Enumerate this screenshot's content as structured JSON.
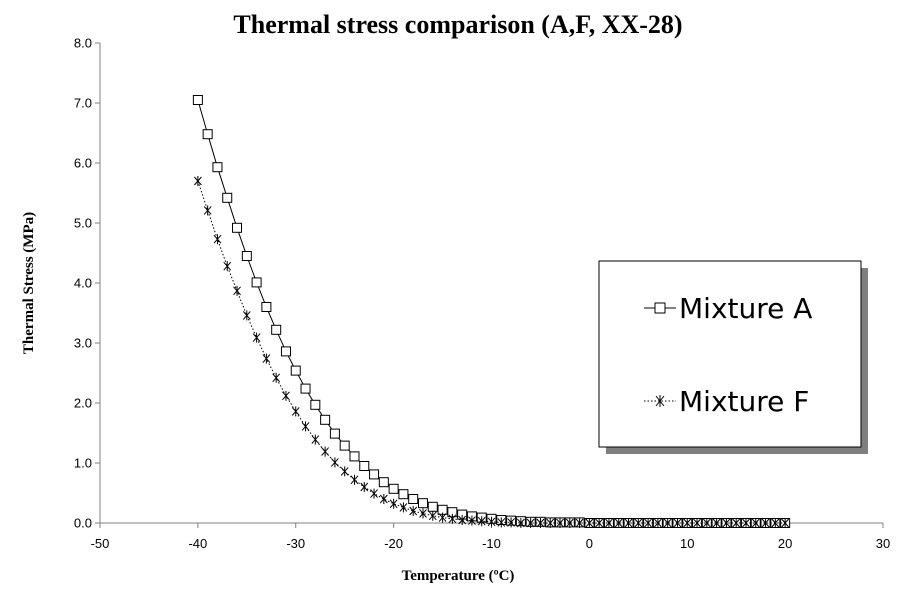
{
  "chart_data": {
    "type": "line",
    "title": "Thermal stress comparison (A,F, XX-28)",
    "xlabel": "Temperature (ºC)",
    "ylabel": "Thermal Stress (MPa)",
    "xlim": [
      -50,
      30
    ],
    "ylim": [
      0,
      8
    ],
    "x_ticks": [
      -50,
      -40,
      -30,
      -20,
      -10,
      0,
      10,
      20,
      30
    ],
    "y_ticks": [
      0.0,
      1.0,
      2.0,
      3.0,
      4.0,
      5.0,
      6.0,
      7.0,
      8.0
    ],
    "grid": false,
    "legend_position": "right",
    "series": [
      {
        "name": "Mixture A",
        "marker": "square",
        "line_style": "solid",
        "color": "#000000",
        "x": [
          -40,
          -39,
          -38,
          -37,
          -36,
          -35,
          -34,
          -33,
          -32,
          -31,
          -30,
          -29,
          -28,
          -27,
          -26,
          -25,
          -24,
          -23,
          -22,
          -21,
          -20,
          -19,
          -18,
          -17,
          -16,
          -15,
          -14,
          -13,
          -12,
          -11,
          -10,
          -9,
          -8,
          -7,
          -6,
          -5,
          -4,
          -3,
          -2,
          -1,
          0,
          1,
          2,
          3,
          4,
          5,
          6,
          7,
          8,
          9,
          10,
          11,
          12,
          13,
          14,
          15,
          16,
          17,
          18,
          19,
          20
        ],
        "y": [
          7.05,
          6.48,
          5.93,
          5.42,
          4.92,
          4.45,
          4.01,
          3.6,
          3.22,
          2.86,
          2.54,
          2.24,
          1.97,
          1.72,
          1.49,
          1.29,
          1.11,
          0.95,
          0.81,
          0.68,
          0.57,
          0.48,
          0.4,
          0.33,
          0.27,
          0.22,
          0.18,
          0.14,
          0.11,
          0.09,
          0.07,
          0.05,
          0.04,
          0.03,
          0.02,
          0.02,
          0.01,
          0.01,
          0.01,
          0.01,
          0.0,
          0.0,
          0.0,
          0.0,
          0.0,
          0.0,
          0.0,
          0.0,
          0.0,
          0.0,
          0.0,
          0.0,
          0.0,
          0.0,
          0.0,
          0.0,
          0.0,
          0.0,
          0.0,
          0.0,
          0.0
        ]
      },
      {
        "name": "Mixture F",
        "marker": "asterisk",
        "line_style": "dotted",
        "color": "#000000",
        "x": [
          -40,
          -39,
          -38,
          -37,
          -36,
          -35,
          -34,
          -33,
          -32,
          -31,
          -30,
          -29,
          -28,
          -27,
          -26,
          -25,
          -24,
          -23,
          -22,
          -21,
          -20,
          -19,
          -18,
          -17,
          -16,
          -15,
          -14,
          -13,
          -12,
          -11,
          -10,
          -9,
          -8,
          -7,
          -6,
          -5,
          -4,
          -3,
          -2,
          -1,
          0,
          1,
          2,
          3,
          4,
          5,
          6,
          7,
          8,
          9,
          10,
          11,
          12,
          13,
          14,
          15,
          16,
          17,
          18,
          19,
          20
        ],
        "y": [
          5.7,
          5.21,
          4.73,
          4.28,
          3.87,
          3.46,
          3.09,
          2.74,
          2.42,
          2.12,
          1.86,
          1.61,
          1.39,
          1.19,
          1.01,
          0.86,
          0.72,
          0.6,
          0.49,
          0.4,
          0.32,
          0.26,
          0.2,
          0.16,
          0.12,
          0.09,
          0.07,
          0.05,
          0.04,
          0.03,
          0.02,
          0.01,
          0.01,
          0.0,
          0.0,
          0.0,
          0.0,
          0.0,
          0.0,
          0.0,
          0.0,
          0.0,
          0.0,
          0.0,
          0.0,
          0.0,
          0.0,
          0.0,
          0.0,
          0.0,
          0.0,
          0.0,
          0.0,
          0.0,
          0.0,
          0.0,
          0.0,
          0.0,
          0.0,
          0.0,
          0.0
        ]
      }
    ]
  }
}
